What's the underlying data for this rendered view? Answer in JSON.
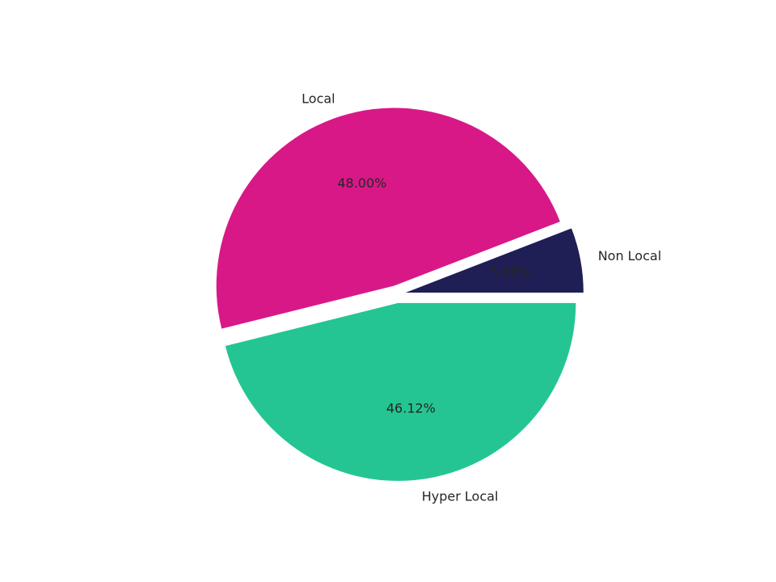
{
  "chart_data": {
    "type": "pie",
    "categories": [
      "Non Local",
      "Local",
      "Hyper Local"
    ],
    "values": [
      5.88,
      48.0,
      46.12
    ],
    "value_labels": [
      "5.88%",
      "48.00%",
      "46.12%"
    ],
    "colors": [
      "#1f1f55",
      "#d81887",
      "#24c592"
    ]
  }
}
